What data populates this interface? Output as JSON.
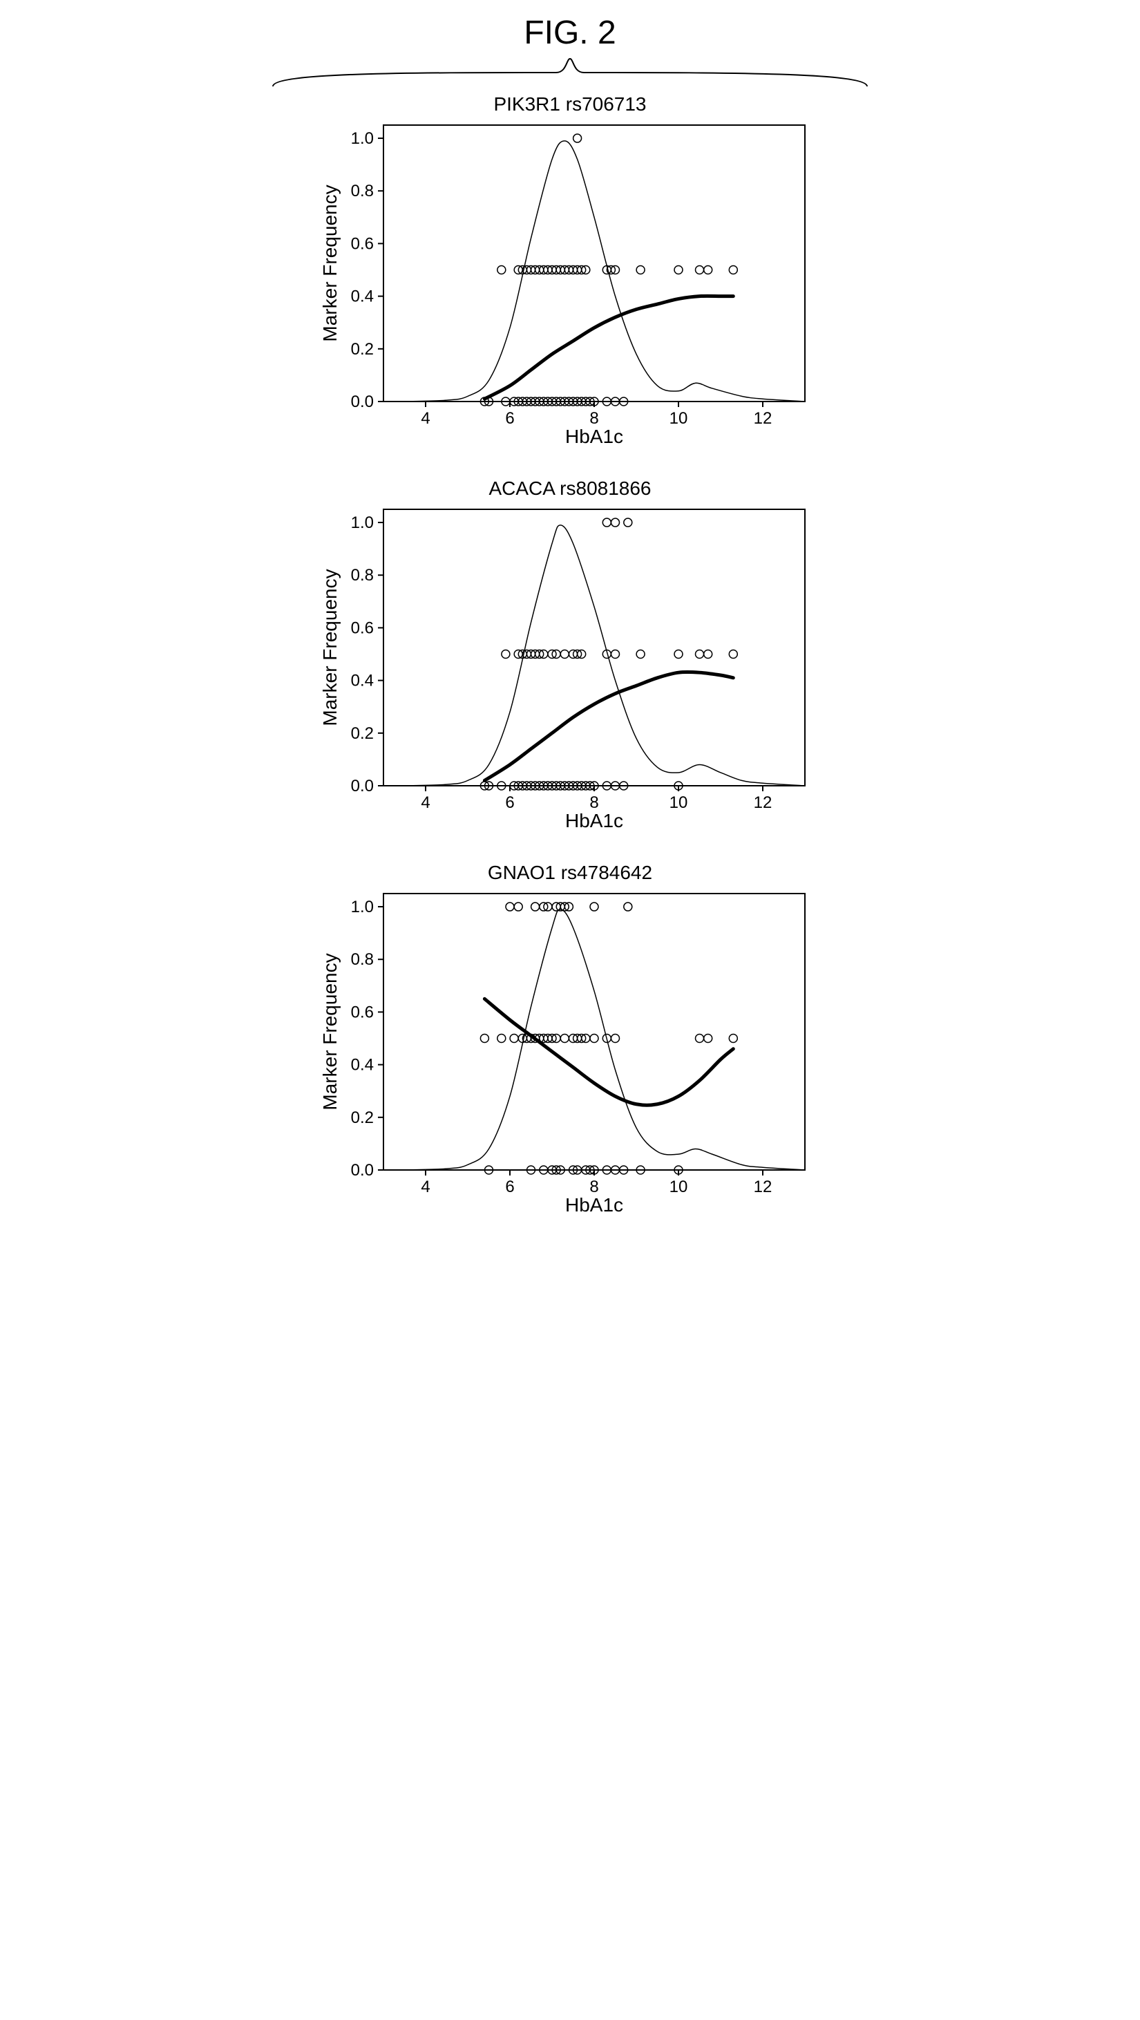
{
  "figure_label": "FIG. 2",
  "global": {
    "background_color": "#ffffff",
    "axis_color": "#000000",
    "text_color": "#000000",
    "tick_fontsize": 24,
    "label_fontsize": 28,
    "title_fontsize": 28,
    "fig_title_fontsize": 48,
    "marker_stroke": "#000000",
    "marker_fill": "none",
    "marker_radius": 6,
    "thin_line_width": 1.5,
    "thick_line_width": 5,
    "axis_line_width": 2
  },
  "panels": [
    {
      "id": "panel-pik3r1",
      "title": "PIK3R1 rs706713",
      "xlabel": "HbA1c",
      "ylabel": "Marker Frequency",
      "xlim": [
        3,
        13
      ],
      "ylim": [
        0,
        1.05
      ],
      "xticks": [
        4,
        6,
        8,
        10,
        12
      ],
      "yticks": [
        0.0,
        0.2,
        0.4,
        0.6,
        0.8,
        1.0
      ],
      "scatter": [
        {
          "x": 7.6,
          "y": 1.0
        },
        {
          "x": 5.8,
          "y": 0.5
        },
        {
          "x": 6.2,
          "y": 0.5
        },
        {
          "x": 6.3,
          "y": 0.5
        },
        {
          "x": 6.4,
          "y": 0.5
        },
        {
          "x": 6.5,
          "y": 0.5
        },
        {
          "x": 6.6,
          "y": 0.5
        },
        {
          "x": 6.7,
          "y": 0.5
        },
        {
          "x": 6.8,
          "y": 0.5
        },
        {
          "x": 6.9,
          "y": 0.5
        },
        {
          "x": 7.0,
          "y": 0.5
        },
        {
          "x": 7.1,
          "y": 0.5
        },
        {
          "x": 7.2,
          "y": 0.5
        },
        {
          "x": 7.3,
          "y": 0.5
        },
        {
          "x": 7.4,
          "y": 0.5
        },
        {
          "x": 7.5,
          "y": 0.5
        },
        {
          "x": 7.6,
          "y": 0.5
        },
        {
          "x": 7.7,
          "y": 0.5
        },
        {
          "x": 7.8,
          "y": 0.5
        },
        {
          "x": 8.3,
          "y": 0.5
        },
        {
          "x": 8.4,
          "y": 0.5
        },
        {
          "x": 8.5,
          "y": 0.5
        },
        {
          "x": 9.1,
          "y": 0.5
        },
        {
          "x": 10.0,
          "y": 0.5
        },
        {
          "x": 10.5,
          "y": 0.5
        },
        {
          "x": 10.7,
          "y": 0.5
        },
        {
          "x": 11.3,
          "y": 0.5
        },
        {
          "x": 5.4,
          "y": 0.0
        },
        {
          "x": 5.5,
          "y": 0.0
        },
        {
          "x": 5.9,
          "y": 0.0
        },
        {
          "x": 6.1,
          "y": 0.0
        },
        {
          "x": 6.2,
          "y": 0.0
        },
        {
          "x": 6.3,
          "y": 0.0
        },
        {
          "x": 6.4,
          "y": 0.0
        },
        {
          "x": 6.5,
          "y": 0.0
        },
        {
          "x": 6.6,
          "y": 0.0
        },
        {
          "x": 6.7,
          "y": 0.0
        },
        {
          "x": 6.8,
          "y": 0.0
        },
        {
          "x": 6.9,
          "y": 0.0
        },
        {
          "x": 7.0,
          "y": 0.0
        },
        {
          "x": 7.1,
          "y": 0.0
        },
        {
          "x": 7.2,
          "y": 0.0
        },
        {
          "x": 7.3,
          "y": 0.0
        },
        {
          "x": 7.4,
          "y": 0.0
        },
        {
          "x": 7.5,
          "y": 0.0
        },
        {
          "x": 7.6,
          "y": 0.0
        },
        {
          "x": 7.7,
          "y": 0.0
        },
        {
          "x": 7.8,
          "y": 0.0
        },
        {
          "x": 7.9,
          "y": 0.0
        },
        {
          "x": 8.0,
          "y": 0.0
        },
        {
          "x": 8.3,
          "y": 0.0
        },
        {
          "x": 8.5,
          "y": 0.0
        },
        {
          "x": 8.7,
          "y": 0.0
        }
      ],
      "density_curve": [
        {
          "x": 3.5,
          "y": 0.0
        },
        {
          "x": 4.5,
          "y": 0.005
        },
        {
          "x": 5.0,
          "y": 0.02
        },
        {
          "x": 5.5,
          "y": 0.08
        },
        {
          "x": 6.0,
          "y": 0.28
        },
        {
          "x": 6.5,
          "y": 0.62
        },
        {
          "x": 7.0,
          "y": 0.92
        },
        {
          "x": 7.3,
          "y": 0.99
        },
        {
          "x": 7.6,
          "y": 0.92
        },
        {
          "x": 8.0,
          "y": 0.7
        },
        {
          "x": 8.5,
          "y": 0.4
        },
        {
          "x": 9.0,
          "y": 0.18
        },
        {
          "x": 9.5,
          "y": 0.06
        },
        {
          "x": 10.0,
          "y": 0.04
        },
        {
          "x": 10.4,
          "y": 0.07
        },
        {
          "x": 10.8,
          "y": 0.05
        },
        {
          "x": 11.5,
          "y": 0.02
        },
        {
          "x": 12.0,
          "y": 0.01
        },
        {
          "x": 13.0,
          "y": 0.0
        }
      ],
      "trend_curve": [
        {
          "x": 5.4,
          "y": 0.01
        },
        {
          "x": 6.0,
          "y": 0.06
        },
        {
          "x": 6.5,
          "y": 0.12
        },
        {
          "x": 7.0,
          "y": 0.18
        },
        {
          "x": 7.5,
          "y": 0.23
        },
        {
          "x": 8.0,
          "y": 0.28
        },
        {
          "x": 8.5,
          "y": 0.32
        },
        {
          "x": 9.0,
          "y": 0.35
        },
        {
          "x": 9.5,
          "y": 0.37
        },
        {
          "x": 10.0,
          "y": 0.39
        },
        {
          "x": 10.5,
          "y": 0.4
        },
        {
          "x": 11.0,
          "y": 0.4
        },
        {
          "x": 11.3,
          "y": 0.4
        }
      ]
    },
    {
      "id": "panel-acaca",
      "title": "ACACA rs8081866",
      "xlabel": "HbA1c",
      "ylabel": "Marker Frequency",
      "xlim": [
        3,
        13
      ],
      "ylim": [
        0,
        1.05
      ],
      "xticks": [
        4,
        6,
        8,
        10,
        12
      ],
      "yticks": [
        0.0,
        0.2,
        0.4,
        0.6,
        0.8,
        1.0
      ],
      "scatter": [
        {
          "x": 8.3,
          "y": 1.0
        },
        {
          "x": 8.5,
          "y": 1.0
        },
        {
          "x": 8.8,
          "y": 1.0
        },
        {
          "x": 5.9,
          "y": 0.5
        },
        {
          "x": 6.2,
          "y": 0.5
        },
        {
          "x": 6.3,
          "y": 0.5
        },
        {
          "x": 6.4,
          "y": 0.5
        },
        {
          "x": 6.5,
          "y": 0.5
        },
        {
          "x": 6.6,
          "y": 0.5
        },
        {
          "x": 6.7,
          "y": 0.5
        },
        {
          "x": 6.8,
          "y": 0.5
        },
        {
          "x": 7.0,
          "y": 0.5
        },
        {
          "x": 7.1,
          "y": 0.5
        },
        {
          "x": 7.3,
          "y": 0.5
        },
        {
          "x": 7.5,
          "y": 0.5
        },
        {
          "x": 7.6,
          "y": 0.5
        },
        {
          "x": 7.7,
          "y": 0.5
        },
        {
          "x": 8.3,
          "y": 0.5
        },
        {
          "x": 8.5,
          "y": 0.5
        },
        {
          "x": 9.1,
          "y": 0.5
        },
        {
          "x": 10.0,
          "y": 0.5
        },
        {
          "x": 10.5,
          "y": 0.5
        },
        {
          "x": 10.7,
          "y": 0.5
        },
        {
          "x": 11.3,
          "y": 0.5
        },
        {
          "x": 5.4,
          "y": 0.0
        },
        {
          "x": 5.5,
          "y": 0.0
        },
        {
          "x": 5.8,
          "y": 0.0
        },
        {
          "x": 6.1,
          "y": 0.0
        },
        {
          "x": 6.2,
          "y": 0.0
        },
        {
          "x": 6.3,
          "y": 0.0
        },
        {
          "x": 6.4,
          "y": 0.0
        },
        {
          "x": 6.5,
          "y": 0.0
        },
        {
          "x": 6.6,
          "y": 0.0
        },
        {
          "x": 6.7,
          "y": 0.0
        },
        {
          "x": 6.8,
          "y": 0.0
        },
        {
          "x": 6.9,
          "y": 0.0
        },
        {
          "x": 7.0,
          "y": 0.0
        },
        {
          "x": 7.1,
          "y": 0.0
        },
        {
          "x": 7.2,
          "y": 0.0
        },
        {
          "x": 7.3,
          "y": 0.0
        },
        {
          "x": 7.4,
          "y": 0.0
        },
        {
          "x": 7.5,
          "y": 0.0
        },
        {
          "x": 7.6,
          "y": 0.0
        },
        {
          "x": 7.7,
          "y": 0.0
        },
        {
          "x": 7.8,
          "y": 0.0
        },
        {
          "x": 7.9,
          "y": 0.0
        },
        {
          "x": 8.0,
          "y": 0.0
        },
        {
          "x": 8.3,
          "y": 0.0
        },
        {
          "x": 8.5,
          "y": 0.0
        },
        {
          "x": 8.7,
          "y": 0.0
        },
        {
          "x": 10.0,
          "y": 0.0
        }
      ],
      "density_curve": [
        {
          "x": 3.5,
          "y": 0.0
        },
        {
          "x": 4.5,
          "y": 0.005
        },
        {
          "x": 5.0,
          "y": 0.02
        },
        {
          "x": 5.5,
          "y": 0.08
        },
        {
          "x": 6.0,
          "y": 0.28
        },
        {
          "x": 6.5,
          "y": 0.62
        },
        {
          "x": 7.0,
          "y": 0.92
        },
        {
          "x": 7.2,
          "y": 0.99
        },
        {
          "x": 7.5,
          "y": 0.92
        },
        {
          "x": 8.0,
          "y": 0.68
        },
        {
          "x": 8.5,
          "y": 0.4
        },
        {
          "x": 9.0,
          "y": 0.18
        },
        {
          "x": 9.5,
          "y": 0.07
        },
        {
          "x": 10.0,
          "y": 0.05
        },
        {
          "x": 10.5,
          "y": 0.08
        },
        {
          "x": 11.0,
          "y": 0.05
        },
        {
          "x": 11.5,
          "y": 0.02
        },
        {
          "x": 12.0,
          "y": 0.01
        },
        {
          "x": 13.0,
          "y": 0.0
        }
      ],
      "trend_curve": [
        {
          "x": 5.4,
          "y": 0.02
        },
        {
          "x": 6.0,
          "y": 0.08
        },
        {
          "x": 6.5,
          "y": 0.14
        },
        {
          "x": 7.0,
          "y": 0.2
        },
        {
          "x": 7.5,
          "y": 0.26
        },
        {
          "x": 8.0,
          "y": 0.31
        },
        {
          "x": 8.5,
          "y": 0.35
        },
        {
          "x": 9.0,
          "y": 0.38
        },
        {
          "x": 9.5,
          "y": 0.41
        },
        {
          "x": 10.0,
          "y": 0.43
        },
        {
          "x": 10.5,
          "y": 0.43
        },
        {
          "x": 11.0,
          "y": 0.42
        },
        {
          "x": 11.3,
          "y": 0.41
        }
      ]
    },
    {
      "id": "panel-gnao1",
      "title": "GNAO1 rs4784642",
      "xlabel": "HbA1c",
      "ylabel": "Marker Frequency",
      "xlim": [
        3,
        13
      ],
      "ylim": [
        0,
        1.05
      ],
      "xticks": [
        4,
        6,
        8,
        10,
        12
      ],
      "yticks": [
        0.0,
        0.2,
        0.4,
        0.6,
        0.8,
        1.0
      ],
      "scatter": [
        {
          "x": 6.0,
          "y": 1.0
        },
        {
          "x": 6.2,
          "y": 1.0
        },
        {
          "x": 6.6,
          "y": 1.0
        },
        {
          "x": 6.8,
          "y": 1.0
        },
        {
          "x": 6.9,
          "y": 1.0
        },
        {
          "x": 7.1,
          "y": 1.0
        },
        {
          "x": 7.2,
          "y": 1.0
        },
        {
          "x": 7.3,
          "y": 1.0
        },
        {
          "x": 7.4,
          "y": 1.0
        },
        {
          "x": 8.0,
          "y": 1.0
        },
        {
          "x": 8.8,
          "y": 1.0
        },
        {
          "x": 5.4,
          "y": 0.5
        },
        {
          "x": 5.8,
          "y": 0.5
        },
        {
          "x": 6.1,
          "y": 0.5
        },
        {
          "x": 6.3,
          "y": 0.5
        },
        {
          "x": 6.4,
          "y": 0.5
        },
        {
          "x": 6.5,
          "y": 0.5
        },
        {
          "x": 6.6,
          "y": 0.5
        },
        {
          "x": 6.7,
          "y": 0.5
        },
        {
          "x": 6.8,
          "y": 0.5
        },
        {
          "x": 6.9,
          "y": 0.5
        },
        {
          "x": 7.0,
          "y": 0.5
        },
        {
          "x": 7.1,
          "y": 0.5
        },
        {
          "x": 7.3,
          "y": 0.5
        },
        {
          "x": 7.5,
          "y": 0.5
        },
        {
          "x": 7.6,
          "y": 0.5
        },
        {
          "x": 7.7,
          "y": 0.5
        },
        {
          "x": 7.8,
          "y": 0.5
        },
        {
          "x": 8.0,
          "y": 0.5
        },
        {
          "x": 8.3,
          "y": 0.5
        },
        {
          "x": 8.5,
          "y": 0.5
        },
        {
          "x": 10.5,
          "y": 0.5
        },
        {
          "x": 10.7,
          "y": 0.5
        },
        {
          "x": 11.3,
          "y": 0.5
        },
        {
          "x": 5.5,
          "y": 0.0
        },
        {
          "x": 6.5,
          "y": 0.0
        },
        {
          "x": 6.8,
          "y": 0.0
        },
        {
          "x": 7.0,
          "y": 0.0
        },
        {
          "x": 7.1,
          "y": 0.0
        },
        {
          "x": 7.2,
          "y": 0.0
        },
        {
          "x": 7.5,
          "y": 0.0
        },
        {
          "x": 7.6,
          "y": 0.0
        },
        {
          "x": 7.8,
          "y": 0.0
        },
        {
          "x": 7.9,
          "y": 0.0
        },
        {
          "x": 8.0,
          "y": 0.0
        },
        {
          "x": 8.3,
          "y": 0.0
        },
        {
          "x": 8.5,
          "y": 0.0
        },
        {
          "x": 8.7,
          "y": 0.0
        },
        {
          "x": 9.1,
          "y": 0.0
        },
        {
          "x": 10.0,
          "y": 0.0
        }
      ],
      "density_curve": [
        {
          "x": 3.5,
          "y": 0.0
        },
        {
          "x": 4.5,
          "y": 0.005
        },
        {
          "x": 5.0,
          "y": 0.02
        },
        {
          "x": 5.5,
          "y": 0.08
        },
        {
          "x": 6.0,
          "y": 0.28
        },
        {
          "x": 6.5,
          "y": 0.62
        },
        {
          "x": 7.0,
          "y": 0.92
        },
        {
          "x": 7.2,
          "y": 0.99
        },
        {
          "x": 7.5,
          "y": 0.92
        },
        {
          "x": 8.0,
          "y": 0.68
        },
        {
          "x": 8.5,
          "y": 0.38
        },
        {
          "x": 9.0,
          "y": 0.16
        },
        {
          "x": 9.5,
          "y": 0.07
        },
        {
          "x": 10.0,
          "y": 0.06
        },
        {
          "x": 10.4,
          "y": 0.08
        },
        {
          "x": 10.8,
          "y": 0.06
        },
        {
          "x": 11.5,
          "y": 0.02
        },
        {
          "x": 12.0,
          "y": 0.01
        },
        {
          "x": 13.0,
          "y": 0.0
        }
      ],
      "trend_curve": [
        {
          "x": 5.4,
          "y": 0.65
        },
        {
          "x": 6.0,
          "y": 0.57
        },
        {
          "x": 6.5,
          "y": 0.51
        },
        {
          "x": 7.0,
          "y": 0.45
        },
        {
          "x": 7.5,
          "y": 0.39
        },
        {
          "x": 8.0,
          "y": 0.33
        },
        {
          "x": 8.5,
          "y": 0.28
        },
        {
          "x": 9.0,
          "y": 0.25
        },
        {
          "x": 9.5,
          "y": 0.25
        },
        {
          "x": 10.0,
          "y": 0.28
        },
        {
          "x": 10.5,
          "y": 0.34
        },
        {
          "x": 11.0,
          "y": 0.42
        },
        {
          "x": 11.3,
          "y": 0.46
        }
      ]
    }
  ]
}
